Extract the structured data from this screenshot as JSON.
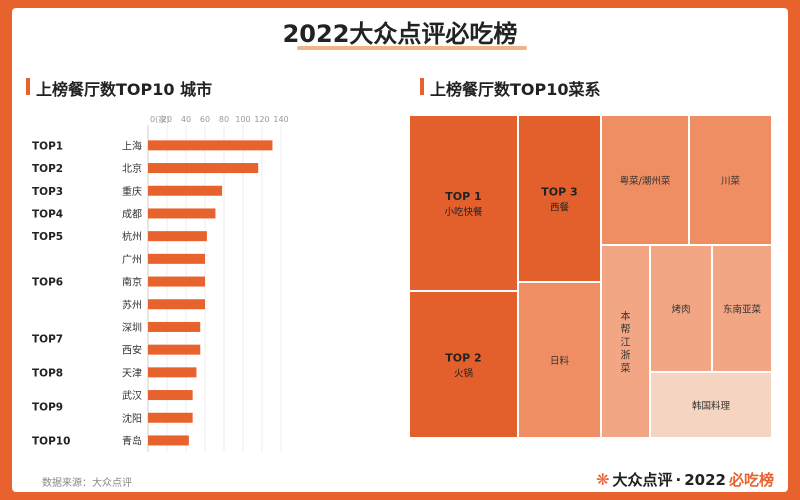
{
  "title": "2022大众点评必吃榜",
  "source": "数据来源：大众点评",
  "brand": {
    "logo_icon": "fork-logo-icon",
    "name": "大众点评",
    "dot": "·",
    "year": "2022",
    "accent": "必吃榜"
  },
  "colors": {
    "primary": "#e8622e",
    "dark": "#e35f2c",
    "light": "#f3a684",
    "pale": "#f6d4c2"
  },
  "chart_data": [
    {
      "type": "bar",
      "orientation": "horizontal",
      "title": "上榜餐厅数TOP10 城市",
      "axis_unit_label": "0(家)",
      "ticks": [
        20,
        40,
        60,
        80,
        100,
        120,
        140
      ],
      "xlim": [
        0,
        140
      ],
      "grid": true,
      "rank_groups": [
        {
          "label": "TOP1",
          "cities": [
            "上海"
          ]
        },
        {
          "label": "TOP2",
          "cities": [
            "北京"
          ]
        },
        {
          "label": "TOP3",
          "cities": [
            "重庆"
          ]
        },
        {
          "label": "TOP4",
          "cities": [
            "成都"
          ]
        },
        {
          "label": "TOP5",
          "cities": [
            "杭州"
          ]
        },
        {
          "label": "TOP6",
          "cities": [
            "广州",
            "南京",
            "苏州"
          ]
        },
        {
          "label": "TOP7",
          "cities": [
            "深圳",
            "西安"
          ]
        },
        {
          "label": "TOP8",
          "cities": [
            "天津"
          ]
        },
        {
          "label": "TOP9",
          "cities": [
            "武汉",
            "沈阳"
          ]
        },
        {
          "label": "TOP10",
          "cities": [
            "青岛"
          ]
        }
      ],
      "categories": [
        "上海",
        "北京",
        "重庆",
        "成都",
        "杭州",
        "广州",
        "南京",
        "苏州",
        "深圳",
        "西安",
        "天津",
        "武汉",
        "沈阳",
        "青岛"
      ],
      "values": [
        131,
        116,
        78,
        71,
        62,
        60,
        60,
        60,
        55,
        55,
        51,
        47,
        47,
        43
      ]
    },
    {
      "type": "treemap",
      "title": "上榜餐厅数TOP10菜系",
      "cells": [
        {
          "rank": "TOP 1",
          "name": "小吃快餐",
          "shade": "dark"
        },
        {
          "rank": "TOP 2",
          "name": "火锅",
          "shade": "dark"
        },
        {
          "rank": "TOP 3",
          "name": "西餐",
          "shade": "dark"
        },
        {
          "rank": "",
          "name": "日料",
          "shade": "mid"
        },
        {
          "rank": "",
          "name": "粤菜/潮州菜",
          "shade": "mid"
        },
        {
          "rank": "",
          "name": "川菜",
          "shade": "mid"
        },
        {
          "rank": "",
          "name": "本帮江浙菜",
          "shade": "light"
        },
        {
          "rank": "",
          "name": "烤肉",
          "shade": "light"
        },
        {
          "rank": "",
          "name": "东南亚菜",
          "shade": "light"
        },
        {
          "rank": "",
          "name": "韩国料理",
          "shade": "pale"
        }
      ]
    }
  ]
}
